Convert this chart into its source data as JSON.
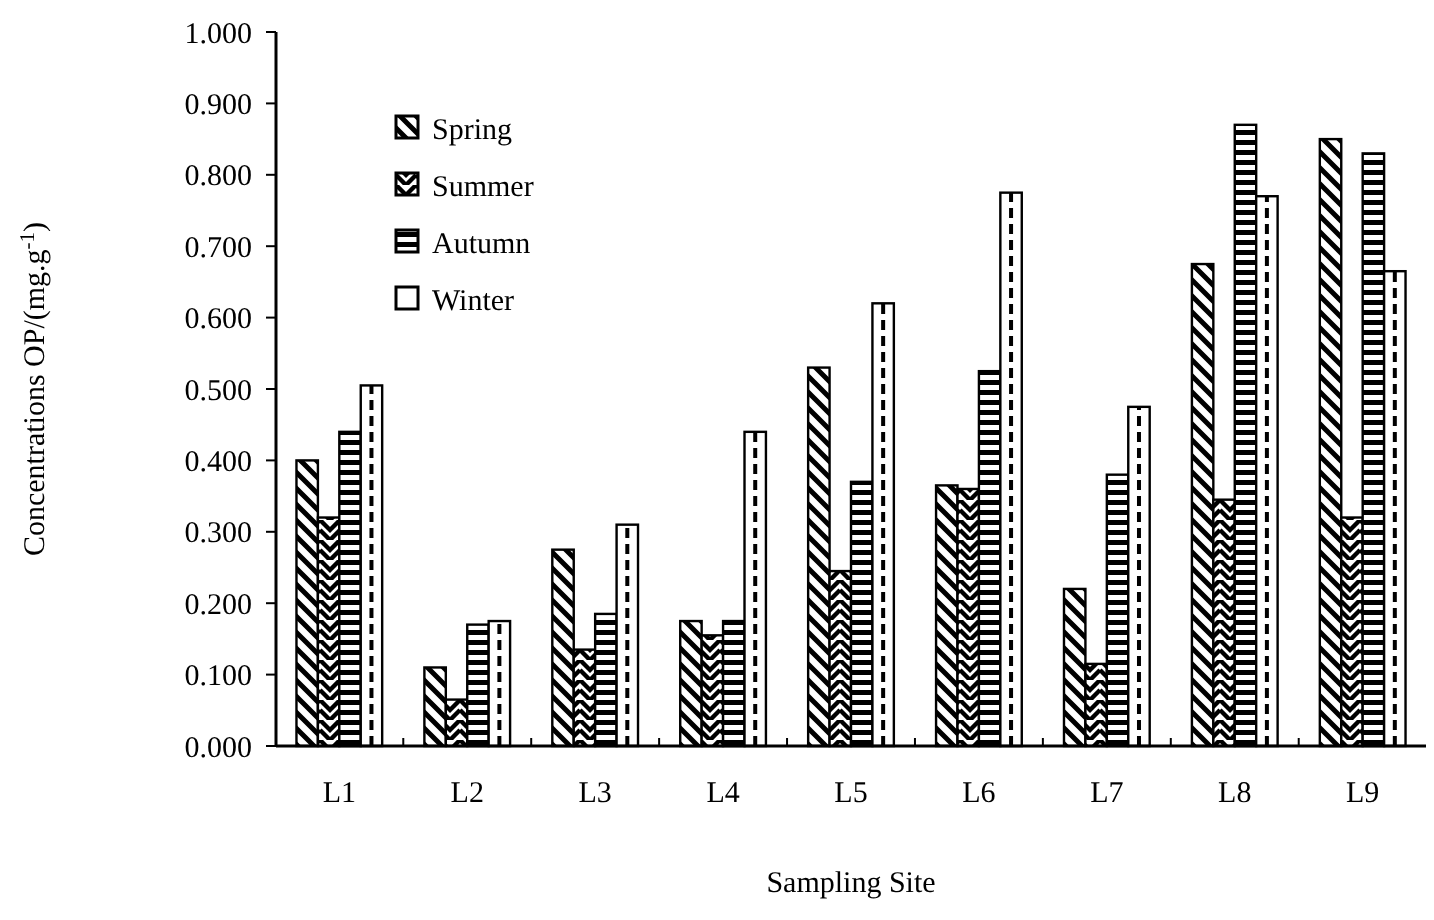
{
  "chart_data": {
    "type": "bar",
    "xlabel": "Sampling Site",
    "ylabel": "Concentrations OP/(mg.g$^{-1}$)",
    "categories": [
      "L1",
      "L2",
      "L3",
      "L4",
      "L5",
      "L6",
      "L7",
      "L8",
      "L9"
    ],
    "series": [
      {
        "name": "Spring",
        "color": "#000000",
        "values": [
          0.4,
          0.11,
          0.275,
          0.175,
          0.53,
          0.365,
          0.22,
          0.675,
          0.85
        ]
      },
      {
        "name": "Summer",
        "color": "#000000",
        "values": [
          0.32,
          0.065,
          0.135,
          0.155,
          0.245,
          0.36,
          0.115,
          0.345,
          0.32
        ]
      },
      {
        "name": "Autumn",
        "color": "#000000",
        "values": [
          0.44,
          0.17,
          0.185,
          0.175,
          0.37,
          0.525,
          0.38,
          0.87,
          0.83
        ]
      },
      {
        "name": "Winter",
        "color": "#000000",
        "values": [
          0.505,
          0.175,
          0.31,
          0.44,
          0.62,
          0.775,
          0.475,
          0.77,
          0.665
        ]
      }
    ],
    "ylim": [
      0,
      1
    ],
    "yticks": [
      {
        "value": 0,
        "label": "0.000"
      },
      {
        "value": 0.1,
        "label": "0.100"
      },
      {
        "value": 0.2,
        "label": "0.200"
      },
      {
        "value": 0.3,
        "label": "0.300"
      },
      {
        "value": 0.4,
        "label": "0.400"
      },
      {
        "value": 0.5,
        "label": "0.500"
      },
      {
        "value": 0.6,
        "label": "0.600"
      },
      {
        "value": 0.7,
        "label": "0.700"
      },
      {
        "value": 0.8,
        "label": "0.800"
      },
      {
        "value": 0.9,
        "label": "0.900"
      },
      {
        "value": 1,
        "label": "1.000"
      }
    ],
    "grid": false,
    "legend": "top left"
  }
}
